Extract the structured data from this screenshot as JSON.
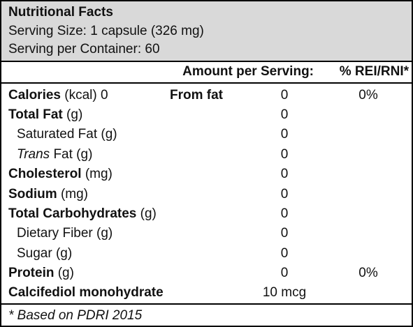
{
  "header": {
    "title": "Nutritional Facts",
    "serving_size": "Serving Size: 1 capsule (326 mg)",
    "servings": "Serving per Container: 60"
  },
  "table": {
    "columns": [
      "Amount per Serving:",
      "% REI/RNI*"
    ],
    "rows": [
      {
        "name": "Calories",
        "unit": "(kcal) 0",
        "extra": "From fat",
        "amount": "0",
        "percent": "0%"
      },
      {
        "name": "Total Fat",
        "unit": "(g)",
        "amount": "0"
      },
      {
        "name": "Saturated Fat (g)",
        "amount": "0"
      },
      {
        "name": "Trans",
        "unit": "Fat (g)",
        "amount": "0"
      },
      {
        "name": "Cholesterol",
        "unit": "(mg)",
        "amount": "0"
      },
      {
        "name": "Sodium",
        "unit": "(mg)",
        "amount": "0"
      },
      {
        "name": "Total Carbohydrates",
        "unit": "(g)",
        "amount": "0"
      },
      {
        "name": "Dietary Fiber (g)",
        "amount": "0"
      },
      {
        "name": "Sugar (g)",
        "amount": "0"
      },
      {
        "name": "Protein",
        "unit": "(g)",
        "amount": "0",
        "percent": "0%"
      },
      {
        "name": "Calcifediol monohydrate",
        "amount": "10 mcg"
      }
    ]
  },
  "footnote": "* Based on PDRI 2015"
}
